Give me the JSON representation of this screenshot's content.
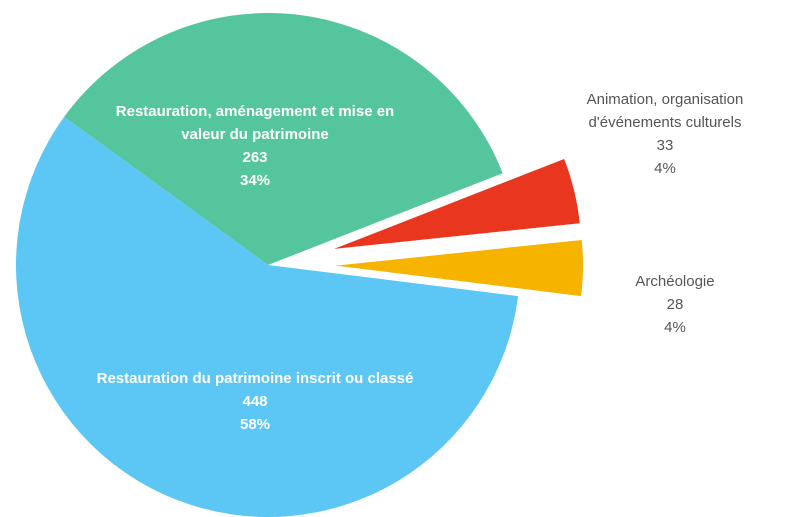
{
  "chart_data": {
    "type": "pie",
    "categories": [
      "Restauration, aménagement et mise en valeur du patrimoine",
      "Animation, organisation d'événements culturels",
      "Archéologie",
      "Restauration du patrimoine inscrit ou classé"
    ],
    "values": [
      263,
      33,
      28,
      448
    ],
    "percent_labels": [
      "34%",
      "4%",
      "4%",
      "58%"
    ],
    "colors": [
      "#55c59e",
      "#e8361f",
      "#f6b300",
      "#5cc7f4"
    ],
    "exploded": [
      false,
      true,
      true,
      false
    ]
  }
}
